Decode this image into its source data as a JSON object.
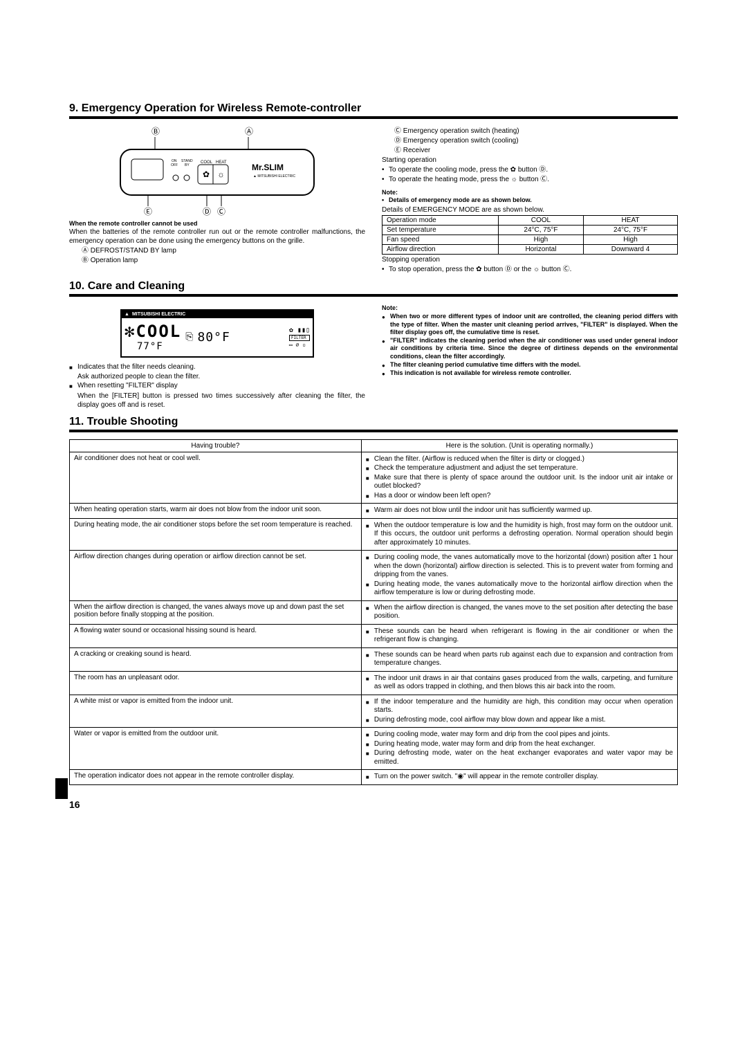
{
  "section9": {
    "title": "9. Emergency Operation for Wireless Remote-controller",
    "diagram": {
      "label_B": "Ⓑ",
      "label_A": "Ⓐ",
      "label_E": "Ⓔ",
      "label_D": "Ⓓ",
      "label_C": "Ⓒ",
      "on": "ON",
      "off": "OFF",
      "standby": "STAND BY",
      "cool": "COOL",
      "heat": "HEAT",
      "brand": "Mr.SLIM",
      "brand_sub": "MITSUBISHI ELECTRIC"
    },
    "left": {
      "heading": "When the remote controller cannot be used",
      "body1": "When the batteries of the remote controller run out or the remote controller malfunctions, the emergency operation can be done using the emergency buttons on the grille.",
      "itemA": "Ⓐ DEFROST/STAND BY lamp",
      "itemB": "Ⓑ Operation lamp"
    },
    "right": {
      "legendC": "Ⓒ Emergency operation switch (heating)",
      "legendD": "Ⓓ Emergency operation switch (cooling)",
      "legendE": "Ⓔ Receiver",
      "starting": "Starting operation",
      "bullet_cool": "To operate the cooling mode, press the ✿ button Ⓓ.",
      "bullet_heat": "To operate the heating mode, press the ☼ button Ⓒ.",
      "note_label": "Note:",
      "note_bullet": "Details of emergency mode are as shown below.",
      "table_intro": "Details of EMERGENCY MODE are as shown below.",
      "table": {
        "r1c1": "Operation mode",
        "r1c2": "COOL",
        "r1c3": "HEAT",
        "r2c1": "Set temperature",
        "r2c2": "24°C, 75°F",
        "r2c3": "24°C, 75°F",
        "r3c1": "Fan speed",
        "r3c2": "High",
        "r3c3": "High",
        "r4c1": "Airflow direction",
        "r4c2": "Horizontal",
        "r4c3": "Downward 4"
      },
      "stopping": "Stopping operation",
      "stop_bullet": "To stop operation, press the ✿ button Ⓓ or the ☼ button Ⓒ."
    }
  },
  "section10": {
    "title": "10. Care and Cleaning",
    "lcd": {
      "brand": "MITSUBISHI ELECTRIC",
      "mode": "✻COOL",
      "temp": "77°F",
      "set": "80°F",
      "filter": "FILTER"
    },
    "left": {
      "line1": "Indicates that the filter needs cleaning.",
      "line2": "Ask authorized people to clean the filter.",
      "line3": "When resetting \"FILTER\" display",
      "line4": "When the [FILTER] button is pressed two times successively after cleaning the filter, the display goes off and is reset."
    },
    "right": {
      "note_label": "Note:",
      "n1": "When two or more different types of indoor unit are controlled, the cleaning period differs with the type of filter. When the master unit cleaning period arrives, \"FILTER\" is displayed. When the filter display goes off, the cumulative time is reset.",
      "n2": "\"FILTER\" indicates the cleaning period when the air conditioner was used under general indoor air conditions by criteria time. Since the degree of dirtiness depends on the environmental conditions, clean the filter accordingly.",
      "n3": "The filter cleaning period cumulative time differs with the model.",
      "n4": "This indication is not available for wireless remote controller."
    }
  },
  "section11": {
    "title": "11. Trouble Shooting",
    "headers": {
      "left": "Having trouble?",
      "right": "Here is the solution. (Unit is operating normally.)"
    },
    "rows": [
      {
        "q": "Air conditioner does not heat or cool well.",
        "a": [
          "Clean the filter. (Airflow is reduced when the filter is dirty or clogged.)",
          "Check the temperature adjustment and adjust the set temperature.",
          "Make sure that there is plenty of space around the outdoor unit. Is the indoor unit air intake or outlet blocked?",
          "Has a door or window been left open?"
        ]
      },
      {
        "q": "When heating operation starts, warm air does not blow from the indoor unit soon.",
        "a": [
          "Warm air does not blow until the indoor unit has sufficiently warmed up."
        ]
      },
      {
        "q": "During heating mode, the air conditioner stops before the set room temperature is reached.",
        "a": [
          "When the outdoor temperature is low and the humidity is high, frost may form on the outdoor unit. If this occurs, the outdoor unit performs a defrosting operation. Normal operation should begin after approximately 10 minutes."
        ]
      },
      {
        "q": "Airflow direction changes during operation or airflow direction cannot be set.",
        "a": [
          "During cooling mode, the vanes automatically move to the horizontal (down) position after 1 hour when the down (horizontal) airflow direction is selected. This is to prevent water from forming and dripping from the vanes.",
          "During heating mode, the vanes automatically move to the horizontal airflow direction when the airflow temperature is low or during defrosting mode."
        ]
      },
      {
        "q": "When the airflow direction is changed, the vanes always move up and down past the set position before finally stopping at the position.",
        "a": [
          "When the airflow direction is changed, the vanes move to the set position after detecting the base position."
        ]
      },
      {
        "q": "A flowing water sound or occasional hissing sound is heard.",
        "a": [
          "These sounds can be heard when refrigerant is flowing in the air conditioner or when the refrigerant flow is changing."
        ]
      },
      {
        "q": "A cracking or creaking sound is heard.",
        "a": [
          "These sounds can be heard when parts rub against each due to expansion and contraction from temperature changes."
        ]
      },
      {
        "q": "The room has an unpleasant odor.",
        "a": [
          "The indoor unit draws in air that contains gases produced from the walls, carpeting, and furniture as well as odors trapped in clothing, and then blows this air back into the room."
        ]
      },
      {
        "q": "A white mist or vapor is emitted from the indoor unit.",
        "a": [
          "If the indoor temperature and the humidity are high, this condition may occur when operation starts.",
          "During defrosting mode, cool airflow may blow down and appear like a mist."
        ]
      },
      {
        "q": "Water or vapor is emitted from the outdoor unit.",
        "a": [
          "During cooling mode, water may form and drip from the cool pipes and joints.",
          "During heating mode, water may form and drip from the heat exchanger.",
          "During defrosting mode, water on the heat exchanger evaporates and water vapor may be emitted."
        ]
      },
      {
        "q": "The operation indicator does not appear in the remote controller display.",
        "a": [
          "Turn on the power switch. \"◉\" will appear in the remote controller display."
        ]
      }
    ]
  },
  "page_number": "16"
}
